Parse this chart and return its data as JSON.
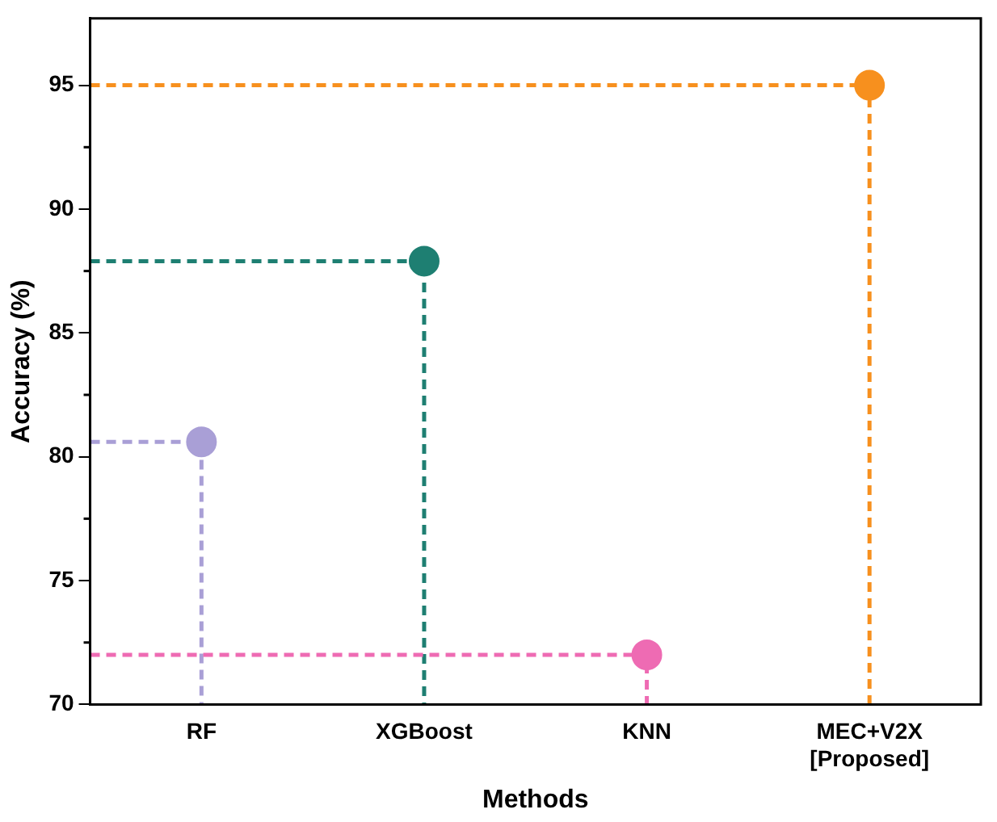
{
  "chart_data": {
    "type": "lollipop",
    "xlabel": "Methods",
    "ylabel": "Accuracy (%)",
    "categories": [
      "RF",
      "XGBoost",
      "KNN",
      "MEC+V2X\n[Proposed]"
    ],
    "values": [
      80.6,
      87.9,
      72.0,
      95.0
    ],
    "colors": [
      "#a99fd6",
      "#1e7f72",
      "#ee6bb3",
      "#f7901e"
    ],
    "ylim": [
      70,
      97.7
    ],
    "yticks": [
      70,
      75,
      80,
      85,
      90,
      95
    ],
    "marker": "circle",
    "line_style": "dashed",
    "grid": false,
    "legend": false
  }
}
